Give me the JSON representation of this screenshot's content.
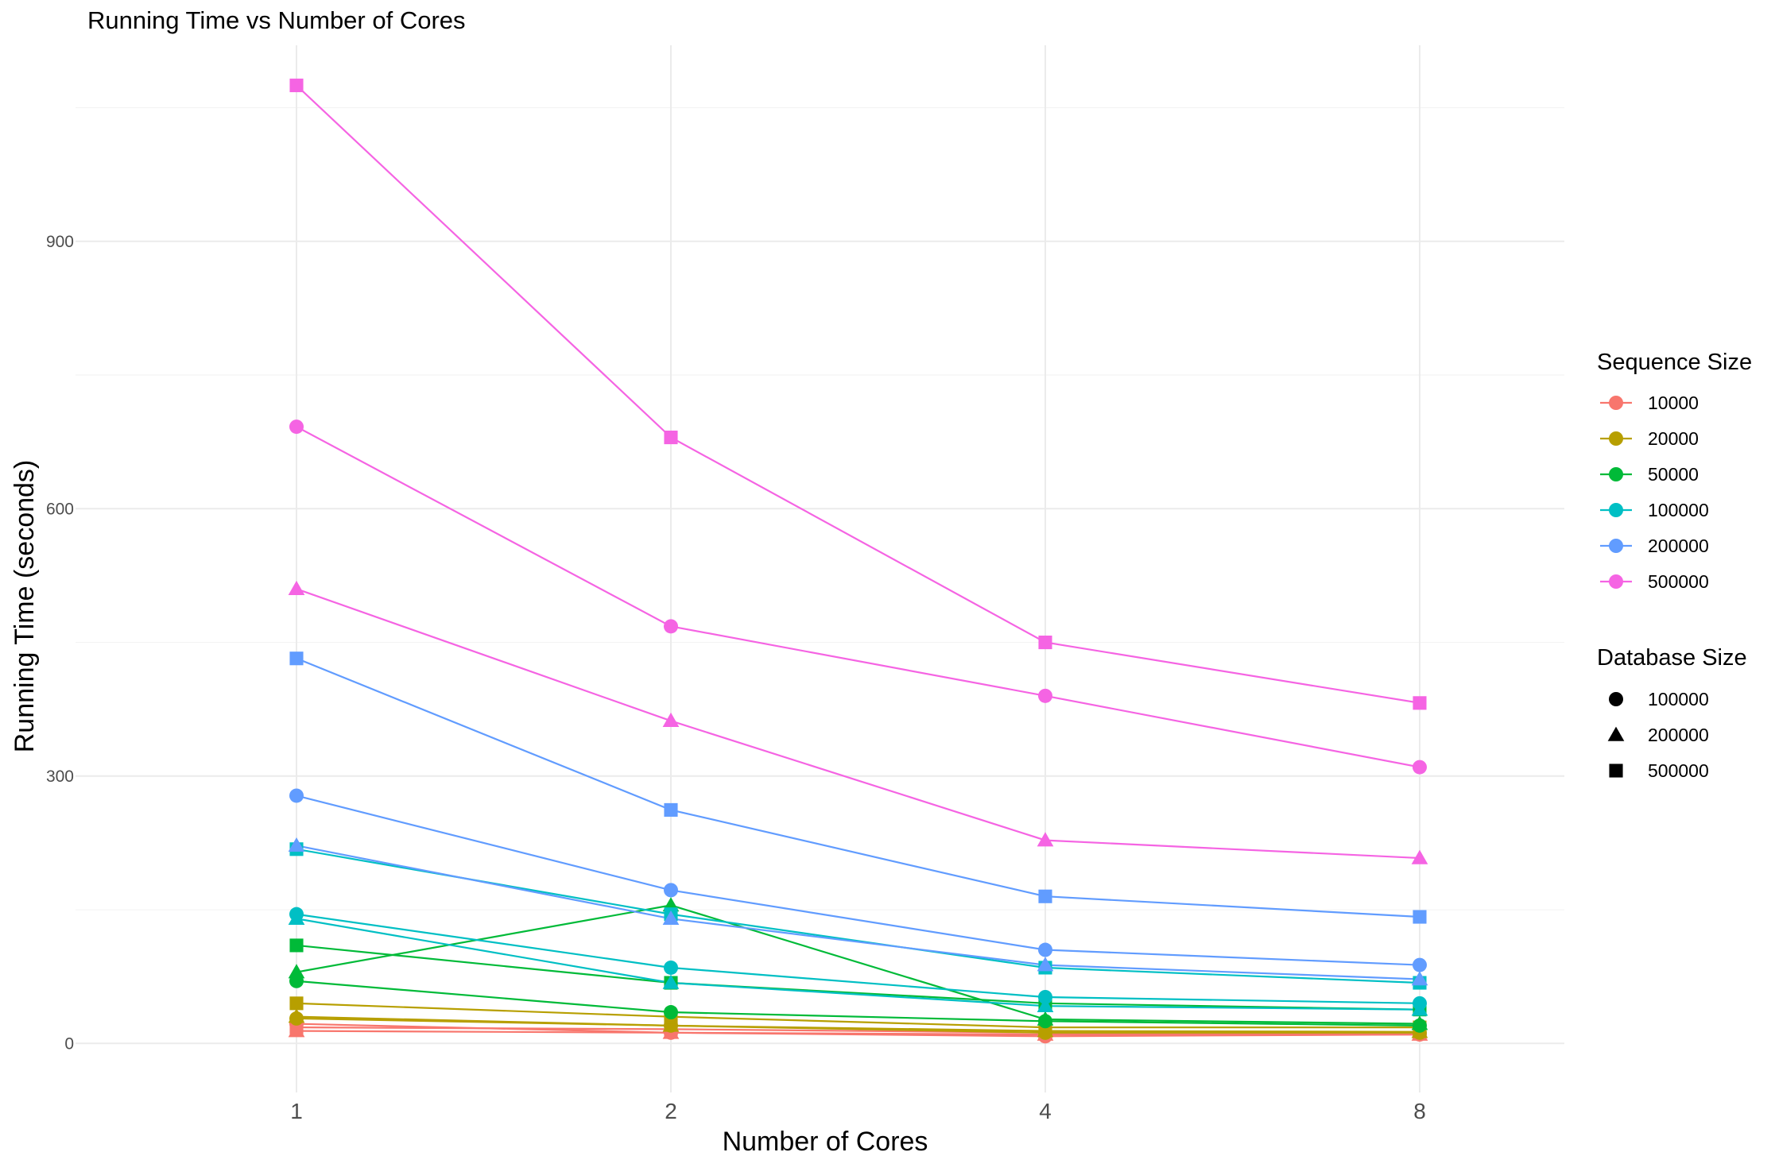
{
  "chart_data": {
    "type": "line",
    "title": "Running Time vs Number of Cores",
    "xlabel": "Number of Cores",
    "ylabel": "Running Time (seconds)",
    "x_scale": "log2",
    "x": [
      1,
      2,
      4,
      8
    ],
    "x_tick_labels": [
      "1",
      "2",
      "4",
      "8"
    ],
    "y_ticks": [
      0,
      300,
      600,
      900
    ],
    "y_tick_labels": [
      "0",
      "300",
      "600",
      "900"
    ],
    "ylim": [
      -55,
      1120
    ],
    "grid": true,
    "legend_position": "right",
    "legend_color": {
      "title": "Sequence Size",
      "entries": [
        {
          "label": "10000",
          "color": "#F8766D"
        },
        {
          "label": "20000",
          "color": "#B79F00"
        },
        {
          "label": "50000",
          "color": "#00BA38"
        },
        {
          "label": "100000",
          "color": "#00BFC4"
        },
        {
          "label": "200000",
          "color": "#619CFF"
        },
        {
          "label": "500000",
          "color": "#F564E3"
        }
      ]
    },
    "legend_shape": {
      "title": "Database Size",
      "entries": [
        {
          "label": "100000",
          "shape": "circle"
        },
        {
          "label": "200000",
          "shape": "triangle"
        },
        {
          "label": "500000",
          "shape": "square"
        }
      ]
    },
    "series": [
      {
        "sequence_size": "10000",
        "database_size": "100000",
        "color": "#F8766D",
        "shape": "circle",
        "values": [
          22,
          12,
          8,
          10
        ]
      },
      {
        "sequence_size": "10000",
        "database_size": "200000",
        "color": "#F8766D",
        "shape": "triangle",
        "values": [
          14,
          12,
          10,
          10
        ]
      },
      {
        "sequence_size": "10000",
        "database_size": "500000",
        "color": "#F8766D",
        "shape": "square",
        "values": [
          18,
          16,
          12,
          12
        ]
      },
      {
        "sequence_size": "20000",
        "database_size": "100000",
        "color": "#B79F00",
        "shape": "circle",
        "values": [
          28,
          20,
          12,
          12
        ]
      },
      {
        "sequence_size": "20000",
        "database_size": "200000",
        "color": "#B79F00",
        "shape": "triangle",
        "values": [
          30,
          20,
          14,
          13
        ]
      },
      {
        "sequence_size": "20000",
        "database_size": "500000",
        "color": "#B79F00",
        "shape": "square",
        "values": [
          45,
          30,
          18,
          18
        ]
      },
      {
        "sequence_size": "50000",
        "database_size": "100000",
        "color": "#00BA38",
        "shape": "circle",
        "values": [
          70,
          35,
          25,
          20
        ]
      },
      {
        "sequence_size": "50000",
        "database_size": "200000",
        "color": "#00BA38",
        "shape": "triangle",
        "values": [
          80,
          155,
          27,
          22
        ]
      },
      {
        "sequence_size": "50000",
        "database_size": "500000",
        "color": "#00BA38",
        "shape": "square",
        "values": [
          110,
          68,
          45,
          38
        ]
      },
      {
        "sequence_size": "100000",
        "database_size": "100000",
        "color": "#00BFC4",
        "shape": "circle",
        "values": [
          145,
          85,
          52,
          45
        ]
      },
      {
        "sequence_size": "100000",
        "database_size": "200000",
        "color": "#00BFC4",
        "shape": "triangle",
        "values": [
          140,
          68,
          42,
          38
        ]
      },
      {
        "sequence_size": "100000",
        "database_size": "500000",
        "color": "#00BFC4",
        "shape": "square",
        "values": [
          218,
          145,
          85,
          68
        ]
      },
      {
        "sequence_size": "200000",
        "database_size": "100000",
        "color": "#619CFF",
        "shape": "circle",
        "values": [
          278,
          172,
          105,
          88
        ]
      },
      {
        "sequence_size": "200000",
        "database_size": "200000",
        "color": "#619CFF",
        "shape": "triangle",
        "values": [
          222,
          140,
          88,
          72
        ]
      },
      {
        "sequence_size": "200000",
        "database_size": "500000",
        "color": "#619CFF",
        "shape": "square",
        "values": [
          432,
          262,
          165,
          142
        ]
      },
      {
        "sequence_size": "500000",
        "database_size": "100000",
        "color": "#F564E3",
        "shape": "circle",
        "values": [
          692,
          468,
          390,
          310
        ]
      },
      {
        "sequence_size": "500000",
        "database_size": "200000",
        "color": "#F564E3",
        "shape": "triangle",
        "values": [
          510,
          362,
          228,
          208
        ]
      },
      {
        "sequence_size": "500000",
        "database_size": "500000",
        "color": "#F564E3",
        "shape": "square",
        "values": [
          1075,
          680,
          450,
          382
        ]
      }
    ]
  }
}
